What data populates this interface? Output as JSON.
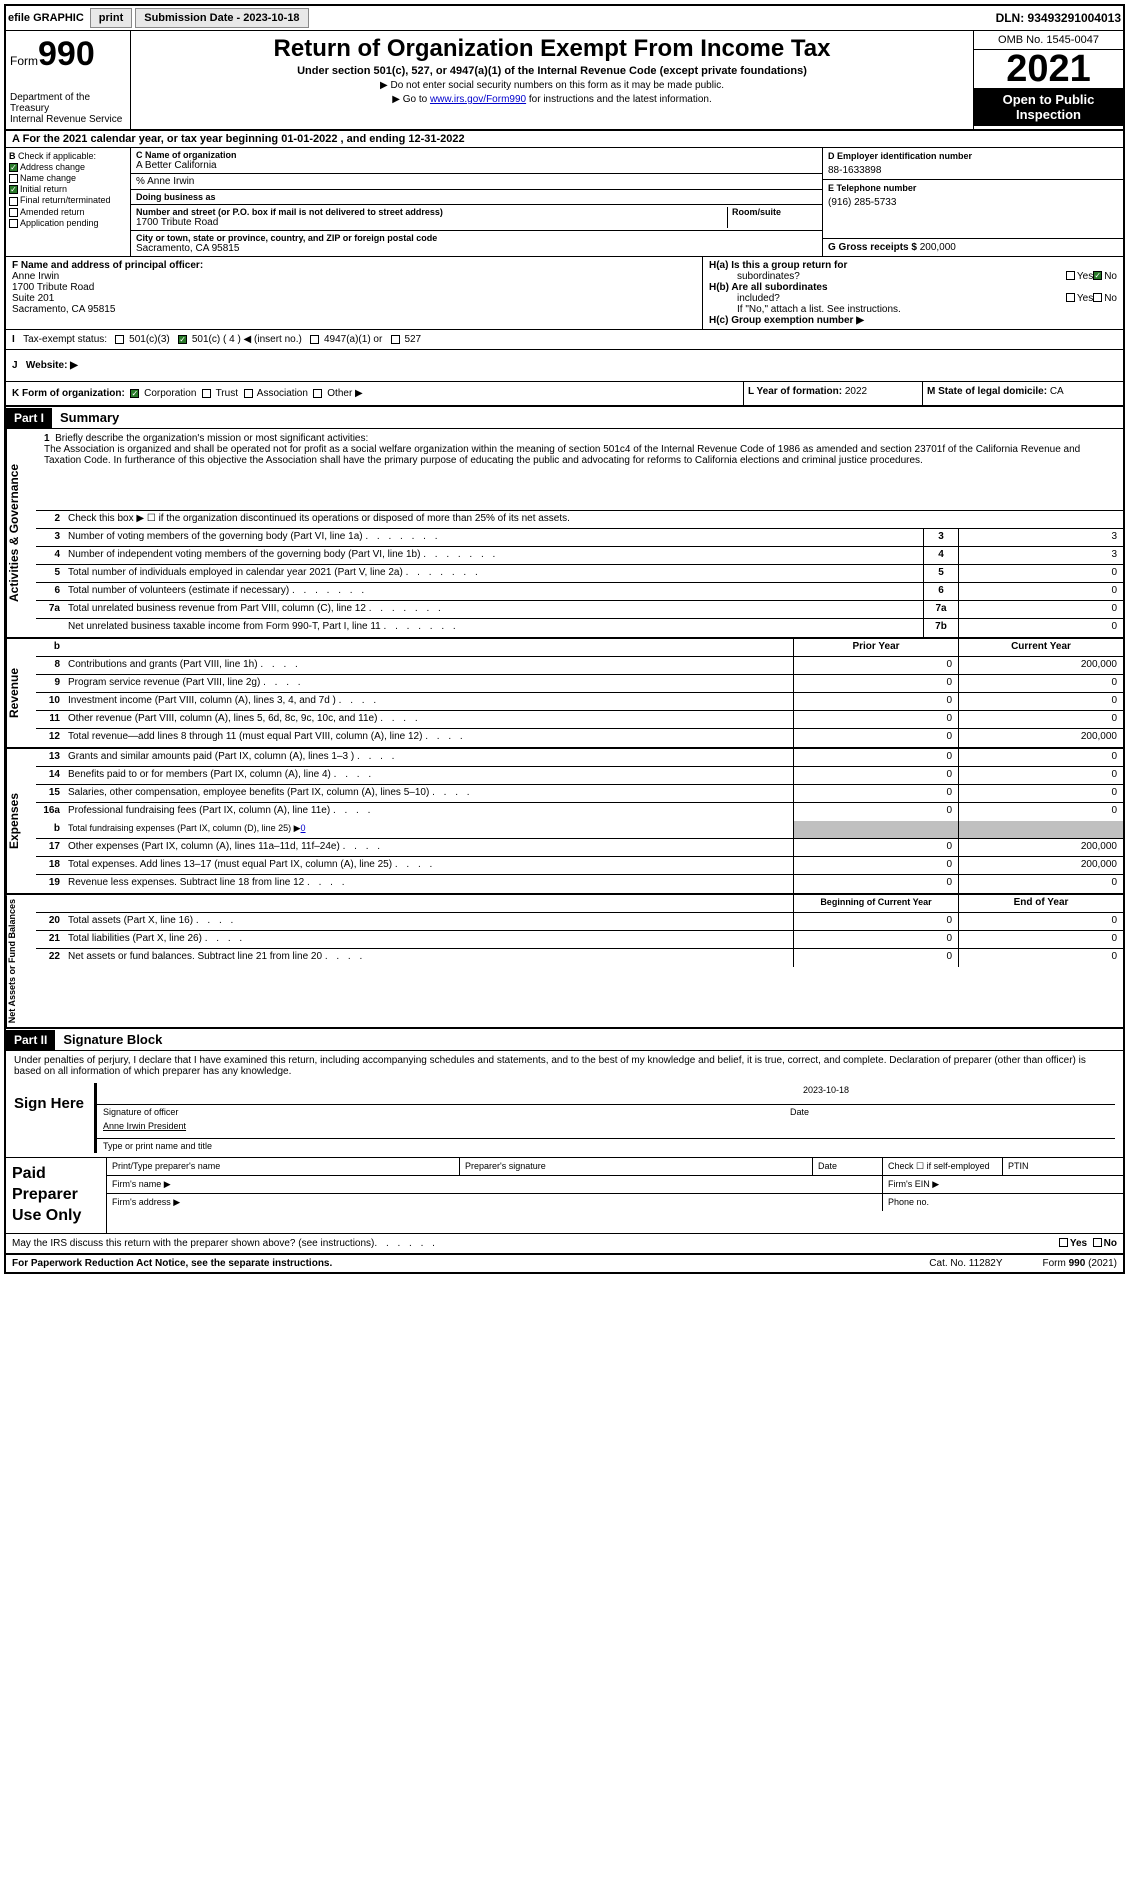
{
  "top": {
    "efile": "efile GRAPHIC",
    "print": "print",
    "subdate_lbl": "Submission Date - ",
    "subdate": "2023-10-18",
    "dln": "DLN: 93493291004013"
  },
  "header": {
    "form_word": "Form",
    "form_num": "990",
    "dept": "Department of the Treasury",
    "irs": "Internal Revenue Service",
    "title": "Return of Organization Exempt From Income Tax",
    "sub": "Under section 501(c), 527, or 4947(a)(1) of the Internal Revenue Code (except private foundations)",
    "note1": "▶ Do not enter social security numbers on this form as it may be made public.",
    "note2a": "▶ Go to ",
    "note2link": "www.irs.gov/Form990",
    "note2b": " for instructions and the latest information.",
    "omb": "OMB No. 1545-0047",
    "year": "2021",
    "public": "Open to Public Inspection"
  },
  "A": {
    "text": "For the 2021 calendar year, or tax year beginning 01-01-2022   , and ending 12-31-2022"
  },
  "B": {
    "title": "Check if applicable:",
    "items": [
      {
        "lbl": "Address change",
        "on": true
      },
      {
        "lbl": "Name change",
        "on": false
      },
      {
        "lbl": "Initial return",
        "on": true
      },
      {
        "lbl": "Final return/terminated",
        "on": false
      },
      {
        "lbl": "Amended return",
        "on": false
      },
      {
        "lbl": "Application pending",
        "on": false
      }
    ]
  },
  "C": {
    "name_lbl": "C Name of organization",
    "name": "A Better California",
    "care_lbl": "% Anne Irwin",
    "dba_lbl": "Doing business as",
    "dba": "",
    "addr_lbl": "Number and street (or P.O. box if mail is not delivered to street address)",
    "addr": "1700 Tribute Road",
    "room_lbl": "Room/suite",
    "city_lbl": "City or town, state or province, country, and ZIP or foreign postal code",
    "city": "Sacramento, CA  95815"
  },
  "D": {
    "lbl": "D Employer identification number",
    "val": "88-1633898"
  },
  "E": {
    "lbl": "E Telephone number",
    "val": "(916) 285-5733"
  },
  "G": {
    "lbl": "G Gross receipts $",
    "val": "200,000"
  },
  "F": {
    "lbl": "F  Name and address of principal officer:",
    "name": "Anne Irwin",
    "l1": "1700 Tribute Road",
    "l2": "Suite 201",
    "l3": "Sacramento, CA  95815"
  },
  "H": {
    "a": "H(a)  Is this a group return for",
    "a2": "subordinates?",
    "ayes": "Yes",
    "ano": "No",
    "b": "H(b)  Are all subordinates",
    "b2": "included?",
    "note": "If \"No,\" attach a list. See instructions.",
    "c": "H(c)  Group exemption number ▶"
  },
  "I": {
    "lbl": "Tax-exempt status:",
    "o1": "501(c)(3)",
    "o2": "501(c) ( 4 ) ◀ (insert no.)",
    "o3": "4947(a)(1) or",
    "o4": "527"
  },
  "J": {
    "lbl": "Website: ▶",
    "val": ""
  },
  "K": {
    "lbl": "K Form of organization:",
    "o1": "Corporation",
    "o2": "Trust",
    "o3": "Association",
    "o4": "Other ▶"
  },
  "L": {
    "lbl": "L Year of formation:",
    "val": "2022"
  },
  "M": {
    "lbl": "M State of legal domicile:",
    "val": "CA"
  },
  "P1": {
    "hdr": "Part I",
    "title": "Summary"
  },
  "gov": {
    "side": "Activities & Governance",
    "r1_lbl": "Briefly describe the organization's mission or most significant activities:",
    "r1_txt": "The Association is organized and shall be operated not for profit as a social welfare organization within the meaning of section 501c4 of the Internal Revenue Code of 1986 as amended and section 23701f of the California Revenue and Taxation Code. In furtherance of this objective the Association shall have the primary purpose of educating the public and advocating for reforms to California elections and criminal justice procedures.",
    "r2": "Check this box ▶ ☐ if the organization discontinued its operations or disposed of more than 25% of its net assets.",
    "rows": [
      {
        "n": "3",
        "t": "Number of voting members of the governing body (Part VI, line 1a)",
        "b": "3",
        "v": "3"
      },
      {
        "n": "4",
        "t": "Number of independent voting members of the governing body (Part VI, line 1b)",
        "b": "4",
        "v": "3"
      },
      {
        "n": "5",
        "t": "Total number of individuals employed in calendar year 2021 (Part V, line 2a)",
        "b": "5",
        "v": "0"
      },
      {
        "n": "6",
        "t": "Total number of volunteers (estimate if necessary)",
        "b": "6",
        "v": "0"
      },
      {
        "n": "7a",
        "t": "Total unrelated business revenue from Part VIII, column (C), line 12",
        "b": "7a",
        "v": "0"
      },
      {
        "n": "",
        "t": "Net unrelated business taxable income from Form 990-T, Part I, line 11",
        "b": "7b",
        "v": "0"
      }
    ]
  },
  "rev": {
    "side": "Revenue",
    "py": "Prior Year",
    "cy": "Current Year",
    "rows": [
      {
        "n": "8",
        "t": "Contributions and grants (Part VIII, line 1h)",
        "p": "0",
        "c": "200,000"
      },
      {
        "n": "9",
        "t": "Program service revenue (Part VIII, line 2g)",
        "p": "0",
        "c": "0"
      },
      {
        "n": "10",
        "t": "Investment income (Part VIII, column (A), lines 3, 4, and 7d )",
        "p": "0",
        "c": "0"
      },
      {
        "n": "11",
        "t": "Other revenue (Part VIII, column (A), lines 5, 6d, 8c, 9c, 10c, and 11e)",
        "p": "0",
        "c": "0"
      },
      {
        "n": "12",
        "t": "Total revenue—add lines 8 through 11 (must equal Part VIII, column (A), line 12)",
        "p": "0",
        "c": "200,000"
      }
    ]
  },
  "exp": {
    "side": "Expenses",
    "rows": [
      {
        "n": "13",
        "t": "Grants and similar amounts paid (Part IX, column (A), lines 1–3 )",
        "p": "0",
        "c": "0"
      },
      {
        "n": "14",
        "t": "Benefits paid to or for members (Part IX, column (A), line 4)",
        "p": "0",
        "c": "0"
      },
      {
        "n": "15",
        "t": "Salaries, other compensation, employee benefits (Part IX, column (A), lines 5–10)",
        "p": "0",
        "c": "0"
      },
      {
        "n": "16a",
        "t": "Professional fundraising fees (Part IX, column (A), line 11e)",
        "p": "0",
        "c": "0"
      }
    ],
    "r16b": {
      "n": "b",
      "t": "Total fundraising expenses (Part IX, column (D), line 25) ▶",
      "v": "0"
    },
    "rows2": [
      {
        "n": "17",
        "t": "Other expenses (Part IX, column (A), lines 11a–11d, 11f–24e)",
        "p": "0",
        "c": "200,000"
      },
      {
        "n": "18",
        "t": "Total expenses. Add lines 13–17 (must equal Part IX, column (A), line 25)",
        "p": "0",
        "c": "200,000"
      },
      {
        "n": "19",
        "t": "Revenue less expenses. Subtract line 18 from line 12",
        "p": "0",
        "c": "0"
      }
    ]
  },
  "net": {
    "side": "Net Assets or Fund Balances",
    "by": "Beginning of Current Year",
    "ey": "End of Year",
    "rows": [
      {
        "n": "20",
        "t": "Total assets (Part X, line 16)",
        "p": "0",
        "c": "0"
      },
      {
        "n": "21",
        "t": "Total liabilities (Part X, line 26)",
        "p": "0",
        "c": "0"
      },
      {
        "n": "22",
        "t": "Net assets or fund balances. Subtract line 21 from line 20",
        "p": "0",
        "c": "0"
      }
    ]
  },
  "P2": {
    "hdr": "Part II",
    "title": "Signature Block"
  },
  "sig": {
    "decl": "Under penalties of perjury, I declare that I have examined this return, including accompanying schedules and statements, and to the best of my knowledge and belief, it is true, correct, and complete. Declaration of preparer (other than officer) is based on all information of which preparer has any knowledge.",
    "here": "Sign Here",
    "sig_lbl": "Signature of officer",
    "date_lbl": "Date",
    "date": "2023-10-18",
    "name": "Anne Irwin President",
    "name_lbl": "Type or print name and title"
  },
  "prep": {
    "lbl": "Paid Preparer Use Only",
    "c1": "Print/Type preparer's name",
    "c2": "Preparer's signature",
    "c3": "Date",
    "c4": "Check ☐ if self-employed",
    "c5": "PTIN",
    "f1": "Firm's name  ▶",
    "f2": "Firm's EIN ▶",
    "f3": "Firm's address ▶",
    "f4": "Phone no."
  },
  "disc": {
    "q": "May the IRS discuss this return with the preparer shown above? (see instructions)",
    "y": "Yes",
    "n": "No"
  },
  "foot": {
    "l": "For Paperwork Reduction Act Notice, see the separate instructions.",
    "c": "Cat. No. 11282Y",
    "r": "Form 990 (2021)"
  }
}
